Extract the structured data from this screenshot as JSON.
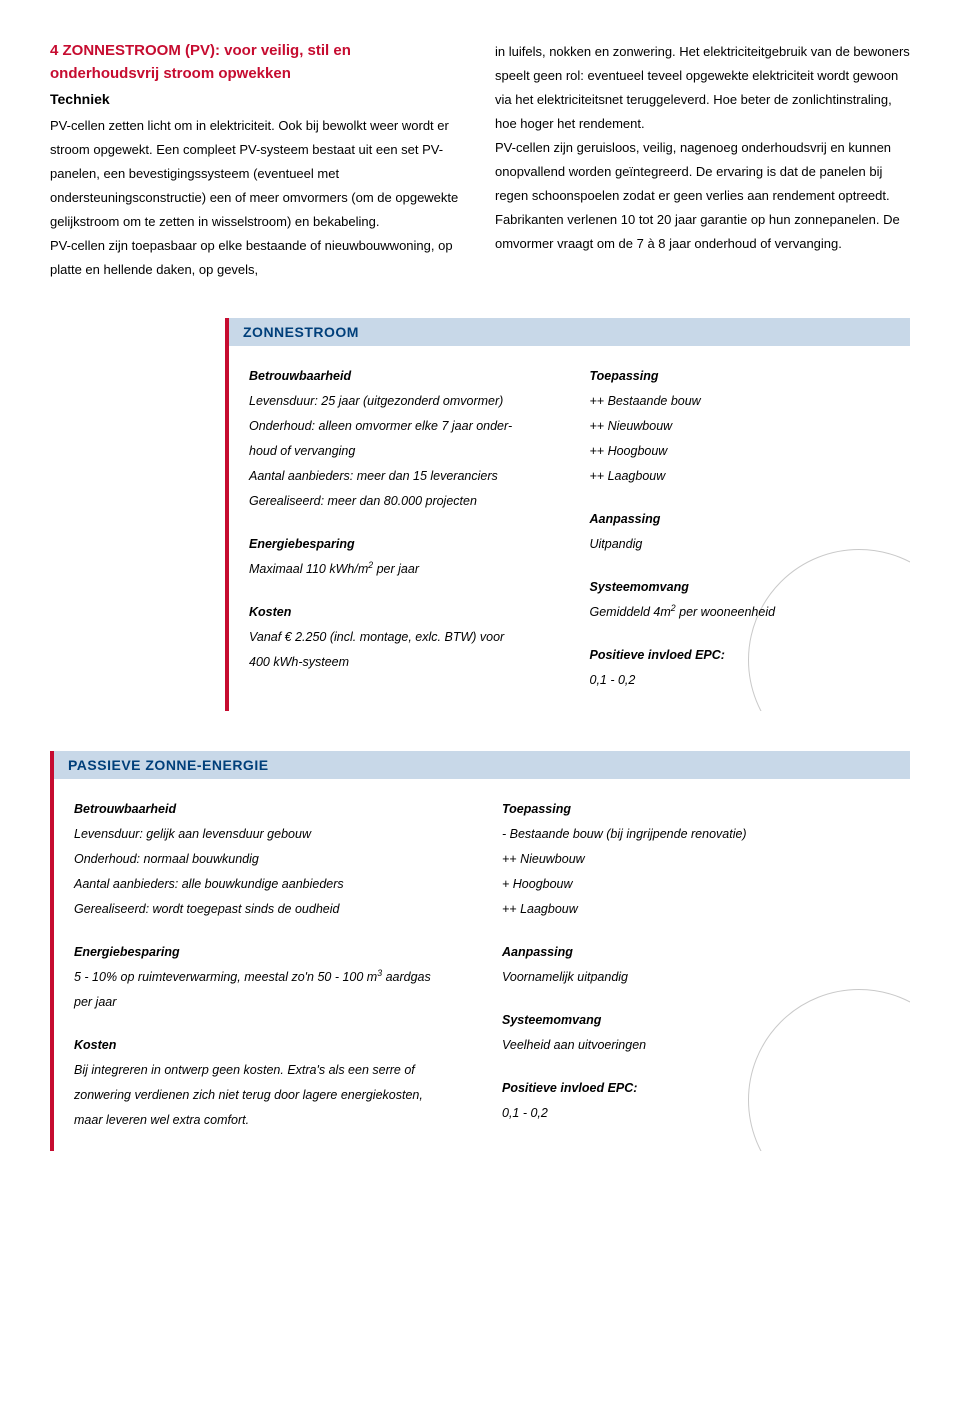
{
  "header": {
    "title_line1": "4 ZONNESTROOM (PV): voor veilig, stil en",
    "title_line2": "onderhoudsvrij stroom opwekken",
    "subtitle": "Techniek"
  },
  "paragraphs": {
    "left": "PV-cellen zetten licht om in elektriciteit. Ook bij bewolkt weer wordt er stroom opgewekt. Een compleet PV-systeem bestaat uit een set PV-panelen, een bevestigingssysteem (eventueel met ondersteuningsconstructie) een of meer omvormers (om de opgewekte gelijkstroom om te zetten in wisselstroom) en bekabeling.",
    "left2": "PV-cellen zijn toepasbaar op elke bestaande of nieuwbouwwoning, op platte en hellende daken, op gevels,",
    "right": "in luifels, nokken en zonwering. Het elektriciteitgebruik van de bewoners speelt geen rol: eventueel teveel opgewekte elektriciteit wordt gewoon via het elektriciteitsnet teruggeleverd. Hoe beter de zonlichtinstraling, hoe hoger het rendement.",
    "right2": "PV-cellen zijn geruisloos, veilig, nagenoeg onderhoudsvrij en kunnen onopvallend worden geïntegreerd. De ervaring is dat de panelen bij regen schoonspoelen zodat er geen verlies aan rendement optreedt. Fabrikanten verlenen 10 tot 20 jaar garantie op hun zonnepanelen. De omvormer vraagt om de 7 à 8 jaar onderhoud of vervanging."
  },
  "box1": {
    "title": "ZONNESTROOM",
    "left": {
      "h1": "Betrouwbaarheid",
      "l1": "Levensduur: 25 jaar (uitgezonderd omvormer)",
      "l2": "Onderhoud: alleen omvormer elke 7 jaar onder-",
      "l3": "houd of vervanging",
      "l4": "Aantal aanbieders: meer dan 15 leveranciers",
      "l5": "Gerealiseerd: meer dan 80.000 projecten",
      "h2": "Energiebesparing",
      "e1a": "Maximaal 110 kWh/m",
      "e1b": " per jaar",
      "h3": "Kosten",
      "k1": "Vanaf € 2.250 (incl. montage, exlc. BTW) voor",
      "k2": "400 kWh-systeem"
    },
    "right": {
      "h1": "Toepassing",
      "t1": "++ Bestaande bouw",
      "t2": "++ Nieuwbouw",
      "t3": "++ Hoogbouw",
      "t4": "++ Laagbouw",
      "h2": "Aanpassing",
      "a1": "Uitpandig",
      "h3": "Systeemomvang",
      "s1a": "Gemiddeld 4m",
      "s1b": " per wooneenheid",
      "h4": "Positieve invloed EPC:",
      "p1": "0,1 - 0,2"
    }
  },
  "box2": {
    "title": "PASSIEVE ZONNE-ENERGIE",
    "left": {
      "h1": "Betrouwbaarheid",
      "l1": "Levensduur: gelijk aan levensduur gebouw",
      "l2": "Onderhoud: normaal bouwkundig",
      "l3": "Aantal aanbieders: alle bouwkundige aanbieders",
      "l4": "Gerealiseerd: wordt toegepast sinds de oudheid",
      "h2": "Energiebesparing",
      "e1a": "5 - 10% op ruimteverwarming, meestal zo'n 50 - 100 m",
      "e1b": " aardgas",
      "e2": "per jaar",
      "h3": "Kosten",
      "k1": "Bij integreren in ontwerp geen kosten. Extra's als een serre of",
      "k2": "zonwering verdienen zich niet terug door lagere energiekosten,",
      "k3": "maar leveren wel extra comfort."
    },
    "right": {
      "h1": "Toepassing",
      "t1": "- Bestaande bouw (bij ingrijpende renovatie)",
      "t2": "++ Nieuwbouw",
      "t3": "+ Hoogbouw",
      "t4": "++ Laagbouw",
      "h2": "Aanpassing",
      "a1": "Voornamelijk uitpandig",
      "h3": "Systeemomvang",
      "s1": "Veelheid aan uitvoeringen",
      "h4": "Positieve invloed EPC:",
      "p1": "0,1 - 0,2"
    }
  }
}
